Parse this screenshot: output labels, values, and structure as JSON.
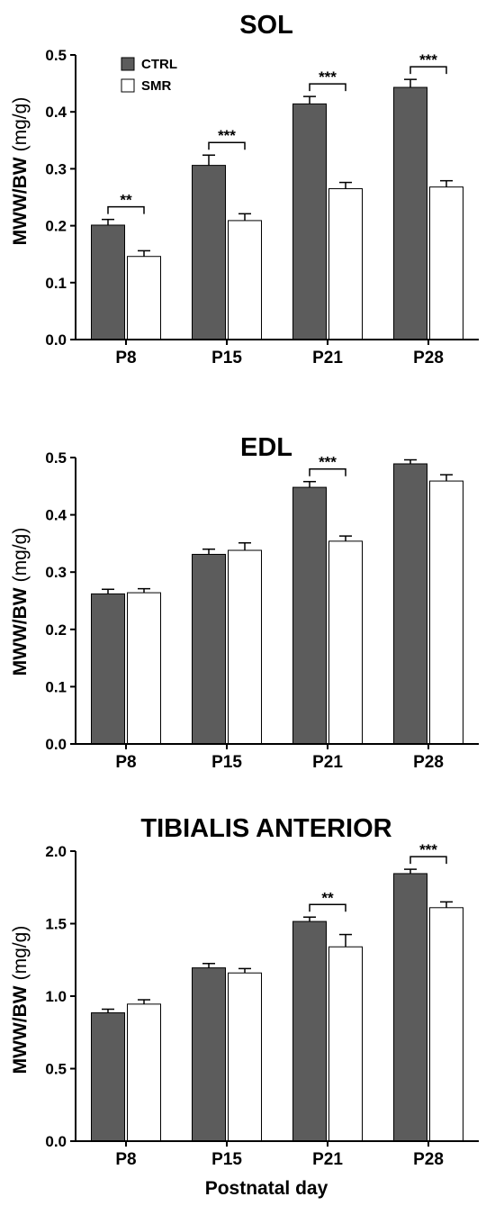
{
  "chart_data": [
    {
      "type": "bar",
      "title": "SOL",
      "ylabel": "MWW/BW",
      "ylabel_unit": "(mg/g)",
      "xlabel": "",
      "categories": [
        "P8",
        "P15",
        "P21",
        "P28"
      ],
      "ylim": [
        0,
        0.5
      ],
      "yticks": [
        "0.0",
        "0.1",
        "0.2",
        "0.3",
        "0.4",
        "0.5"
      ],
      "series": [
        {
          "name": "CTRL",
          "values": [
            0.201,
            0.306,
            0.414,
            0.443
          ],
          "errors": [
            0.01,
            0.018,
            0.013,
            0.014
          ]
        },
        {
          "name": "SMR",
          "values": [
            0.146,
            0.209,
            0.265,
            0.268
          ],
          "errors": [
            0.01,
            0.012,
            0.011,
            0.011
          ]
        }
      ],
      "significance": [
        "**",
        "***",
        "***",
        "***"
      ],
      "legend": {
        "position": "top-left",
        "entries": [
          "CTRL",
          "SMR"
        ]
      }
    },
    {
      "type": "bar",
      "title": "EDL",
      "ylabel": "MWW/BW",
      "ylabel_unit": "(mg/g)",
      "xlabel": "",
      "categories": [
        "P8",
        "P15",
        "P21",
        "P28"
      ],
      "ylim": [
        0,
        0.5
      ],
      "yticks": [
        "0.0",
        "0.1",
        "0.2",
        "0.3",
        "0.4",
        "0.5"
      ],
      "series": [
        {
          "name": "CTRL",
          "values": [
            0.262,
            0.331,
            0.448,
            0.489
          ],
          "errors": [
            0.008,
            0.009,
            0.01,
            0.007
          ]
        },
        {
          "name": "SMR",
          "values": [
            0.264,
            0.338,
            0.354,
            0.459
          ],
          "errors": [
            0.007,
            0.013,
            0.009,
            0.011
          ]
        }
      ],
      "significance": [
        "",
        "",
        "***",
        ""
      ]
    },
    {
      "type": "bar",
      "title": "TIBIALIS ANTERIOR",
      "ylabel": "MWW/BW",
      "ylabel_unit": "(mg/g)",
      "xlabel": "Postnatal day",
      "categories": [
        "P8",
        "P15",
        "P21",
        "P28"
      ],
      "ylim": [
        0,
        2.0
      ],
      "yticks": [
        "0.0",
        "0.5",
        "1.0",
        "1.5",
        "2.0"
      ],
      "series": [
        {
          "name": "CTRL",
          "values": [
            0.885,
            1.195,
            1.515,
            1.845
          ],
          "errors": [
            0.025,
            0.03,
            0.03,
            0.03
          ]
        },
        {
          "name": "SMR",
          "values": [
            0.945,
            1.16,
            1.34,
            1.61
          ],
          "errors": [
            0.03,
            0.03,
            0.085,
            0.04
          ]
        }
      ],
      "significance": [
        "",
        "",
        "**",
        "***"
      ]
    }
  ],
  "colors": {
    "ctrl": "#5c5c5c",
    "smr": "#ffffff",
    "axis": "#000000"
  }
}
